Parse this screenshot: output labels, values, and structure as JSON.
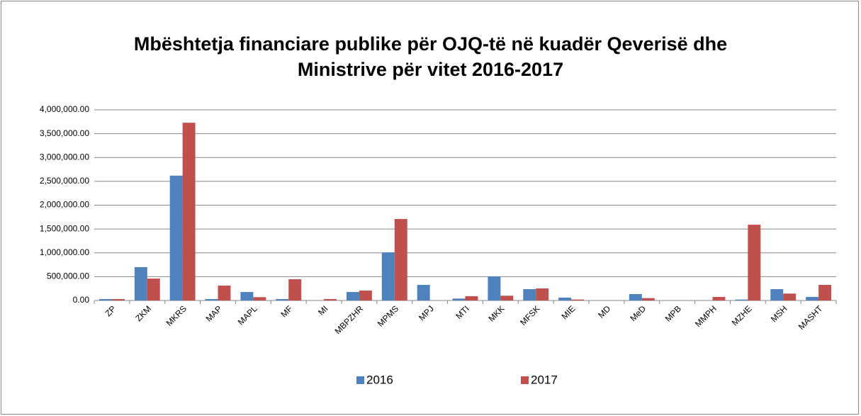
{
  "chart_data": {
    "type": "bar",
    "title": "Mbështetja financiare publike për OJQ-të në kuadër Qeverisë dhe Ministrive për vitet 2016-2017",
    "categories": [
      "ZP",
      "ZKM",
      "MKRS",
      "MAP",
      "MAPL",
      "MF",
      "MI",
      "MBPZHR",
      "MPMS",
      "MPJ",
      "MTI",
      "MKK",
      "MFSK",
      "MIE",
      "MD",
      "MeD",
      "MPB",
      "MMPH",
      "MZHE",
      "MSH",
      "MASHT"
    ],
    "series": [
      {
        "name": "2016",
        "color": "#4f81bd",
        "values": [
          30000,
          700000,
          2620000,
          30000,
          178000,
          30000,
          0,
          178000,
          1010000,
          327000,
          40000,
          505000,
          238000,
          60000,
          0,
          134000,
          0,
          0,
          20000,
          238000,
          75000
        ]
      },
      {
        "name": "2017",
        "color": "#c0504d",
        "values": [
          30000,
          460000,
          3730000,
          312000,
          70000,
          446000,
          30000,
          208000,
          1710000,
          0,
          90000,
          100000,
          253000,
          20000,
          0,
          50000,
          0,
          75000,
          1590000,
          145000,
          327000
        ]
      }
    ],
    "ylim": [
      0,
      4000000
    ],
    "yticks": [
      {
        "value": 0,
        "label": "0.00"
      },
      {
        "value": 500000,
        "label": "500,000.00"
      },
      {
        "value": 1000000,
        "label": "1,000,000.00"
      },
      {
        "value": 1500000,
        "label": "1,500,000.00"
      },
      {
        "value": 2000000,
        "label": "2,000,000.00"
      },
      {
        "value": 2500000,
        "label": "2,500,000.00"
      },
      {
        "value": 3000000,
        "label": "3,000,000.00"
      },
      {
        "value": 3500000,
        "label": "3,500,000.00"
      },
      {
        "value": 4000000,
        "label": "4,000,000.00"
      }
    ],
    "grid": true,
    "legend": "bottom"
  }
}
